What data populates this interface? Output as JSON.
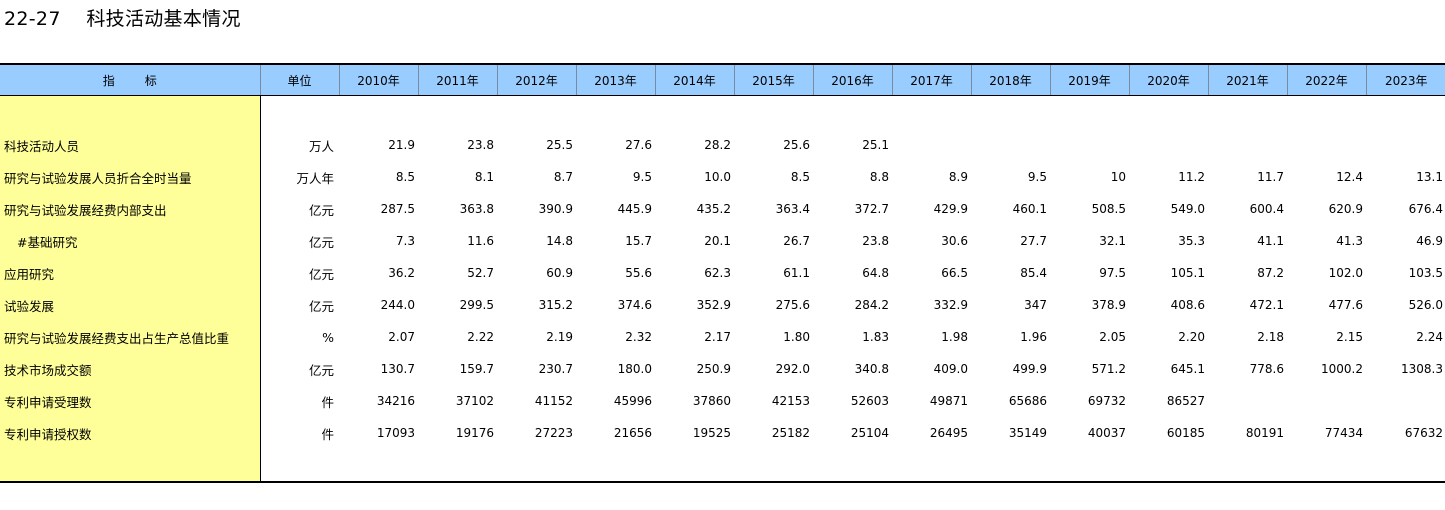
{
  "title": "22-27　 科技活动基本情况",
  "header": {
    "indicator_a": "指",
    "indicator_b": "标",
    "unit": "单位",
    "years": [
      "2010年",
      "2011年",
      "2012年",
      "2013年",
      "2014年",
      "2015年",
      "2016年",
      "2017年",
      "2018年",
      "2019年",
      "2020年",
      "2021年",
      "2022年",
      "2023年"
    ]
  },
  "rows": [
    {
      "label": "科技活动人员",
      "unit": "万人",
      "values": [
        "21.9",
        "23.8",
        "25.5",
        "27.6",
        "28.2",
        "25.6",
        "25.1",
        "",
        "",
        "",
        "",
        "",
        "",
        ""
      ]
    },
    {
      "label": "研究与试验发展人员折合全时当量",
      "unit": "万人年",
      "values": [
        "8.5",
        "8.1",
        "8.7",
        "9.5",
        "10.0",
        "8.5",
        "8.8",
        "8.9",
        "9.5",
        "10",
        "11.2",
        "11.7",
        "12.4",
        "13.1"
      ]
    },
    {
      "label": "研究与试验发展经费内部支出",
      "unit": "亿元",
      "values": [
        "287.5",
        "363.8",
        "390.9",
        "445.9",
        "435.2",
        "363.4",
        "372.7",
        "429.9",
        "460.1",
        "508.5",
        "549.0",
        "600.4",
        "620.9",
        "676.4"
      ]
    },
    {
      "label": "#基础研究",
      "unit": "亿元",
      "values": [
        "7.3",
        "11.6",
        "14.8",
        "15.7",
        "20.1",
        "26.7",
        "23.8",
        "30.6",
        "27.7",
        "32.1",
        "35.3",
        "41.1",
        "41.3",
        "46.9"
      ]
    },
    {
      "label": "应用研究",
      "unit": "亿元",
      "values": [
        "36.2",
        "52.7",
        "60.9",
        "55.6",
        "62.3",
        "61.1",
        "64.8",
        "66.5",
        "85.4",
        "97.5",
        "105.1",
        "87.2",
        "102.0",
        "103.5"
      ]
    },
    {
      "label": "试验发展",
      "unit": "亿元",
      "values": [
        "244.0",
        "299.5",
        "315.2",
        "374.6",
        "352.9",
        "275.6",
        "284.2",
        "332.9",
        "347",
        "378.9",
        "408.6",
        "472.1",
        "477.6",
        "526.0"
      ]
    },
    {
      "label": "研究与试验发展经费支出占生产总值比重",
      "unit": "%",
      "values": [
        "2.07",
        "2.22",
        "2.19",
        "2.32",
        "2.17",
        "1.80",
        "1.83",
        "1.98",
        "1.96",
        "2.05",
        "2.20",
        "2.18",
        "2.15",
        "2.24"
      ]
    },
    {
      "label": "技术市场成交额",
      "unit": "亿元",
      "values": [
        "130.7",
        "159.7",
        "230.7",
        "180.0",
        "250.9",
        "292.0",
        "340.8",
        "409.0",
        "499.9",
        "571.2",
        "645.1",
        "778.6",
        "1000.2",
        "1308.3"
      ]
    },
    {
      "label": "专利申请受理数",
      "unit": "件",
      "values": [
        "34216",
        "37102",
        "41152",
        "45996",
        "37860",
        "42153",
        "52603",
        "49871",
        "65686",
        "69732",
        "86527",
        "",
        "",
        ""
      ]
    },
    {
      "label": "专利申请授权数",
      "unit": "件",
      "values": [
        "17093",
        "19176",
        "27223",
        "21656",
        "19525",
        "25182",
        "25104",
        "26495",
        "35149",
        "40037",
        "60185",
        "80191",
        "77434",
        "67632"
      ]
    }
  ]
}
